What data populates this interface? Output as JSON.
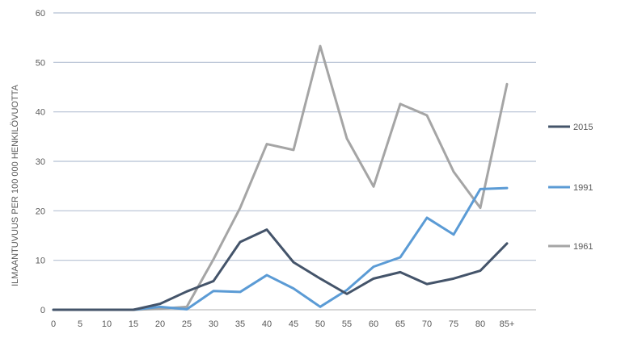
{
  "chart_data": {
    "type": "line",
    "title": "",
    "xlabel": "",
    "ylabel": "ILMAANTUVUUS PER 100 000 HENKILÖVUOTTA",
    "ylim": [
      0,
      60
    ],
    "yticks": [
      0,
      10,
      20,
      30,
      40,
      50,
      60
    ],
    "grid": true,
    "legend_position": "right",
    "categories": [
      "0",
      "5",
      "10",
      "15",
      "20",
      "25",
      "30",
      "35",
      "40",
      "45",
      "50",
      "55",
      "60",
      "65",
      "70",
      "75",
      "80",
      "85+"
    ],
    "series": [
      {
        "name": "2015",
        "color": "#44546a",
        "values": [
          0,
          0,
          0,
          0,
          1.2,
          3.7,
          5.8,
          13.7,
          16.2,
          9.6,
          6.3,
          3.2,
          6.3,
          7.6,
          5.2,
          6.3,
          7.9,
          13.4
        ]
      },
      {
        "name": "1991",
        "color": "#5b9bd5",
        "values": [
          0,
          0,
          0,
          0,
          0.6,
          0.1,
          3.8,
          3.6,
          7.0,
          4.3,
          0.6,
          4.0,
          8.7,
          10.6,
          18.6,
          15.2,
          24.4,
          24.6
        ]
      },
      {
        "name": "1961",
        "color": "#a5a5a5",
        "values": [
          0,
          0,
          0,
          0,
          0.2,
          0.6,
          10.2,
          20.6,
          33.5,
          32.3,
          53.3,
          34.6,
          24.9,
          41.6,
          39.3,
          27.9,
          20.6,
          45.6
        ]
      }
    ]
  }
}
